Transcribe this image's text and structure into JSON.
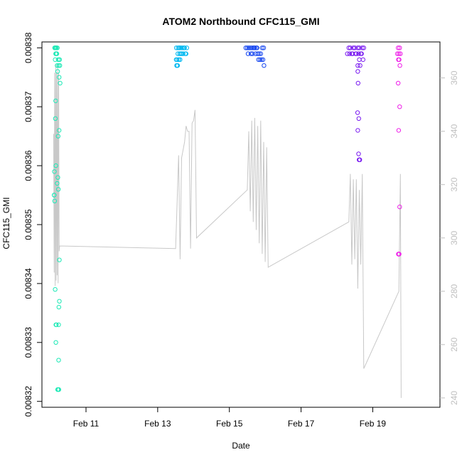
{
  "chart_data": {
    "type": "scatter",
    "title": "ATOM2 Northbound CFC115_GMI",
    "xlabel": "Date",
    "ylabel": "CFC115_GMI",
    "y2label": "",
    "grid": false,
    "legend": "none",
    "xlim": [
      "2022-02-09 18:30",
      "2022-02-20 21:00"
    ],
    "ylim": [
      0.008319,
      0.008381
    ],
    "y2lim": [
      236.5,
      373.5
    ],
    "x_ticks": [
      {
        "label": "Feb 11",
        "date": "2022-02-11"
      },
      {
        "label": "Feb 13",
        "date": "2022-02-13"
      },
      {
        "label": "Feb 15",
        "date": "2022-02-15"
      },
      {
        "label": "Feb 17",
        "date": "2022-02-17"
      },
      {
        "label": "Feb 19",
        "date": "2022-02-19"
      }
    ],
    "y_ticks": [
      {
        "label": "0.00832",
        "value": 0.00832
      },
      {
        "label": "0.00833",
        "value": 0.00833
      },
      {
        "label": "0.00834",
        "value": 0.00834
      },
      {
        "label": "0.00835",
        "value": 0.00835
      },
      {
        "label": "0.00836",
        "value": 0.00836
      },
      {
        "label": "0.00837",
        "value": 0.00837
      },
      {
        "label": "0.00838",
        "value": 0.00838
      }
    ],
    "y2_ticks": [
      {
        "label": "240",
        "value": 240
      },
      {
        "label": "260",
        "value": 260
      },
      {
        "label": "280",
        "value": 280
      },
      {
        "label": "300",
        "value": 300
      },
      {
        "label": "320",
        "value": 320
      },
      {
        "label": "340",
        "value": 340
      },
      {
        "label": "360",
        "value": 360
      }
    ],
    "series": [
      {
        "color": "#1de9b6",
        "points": [
          [
            "2022-02-10 03:10",
            0.00838
          ],
          [
            "2022-02-10 03:30",
            0.00838
          ],
          [
            "2022-02-10 03:50",
            0.008379
          ],
          [
            "2022-02-10 04:10",
            0.00838
          ],
          [
            "2022-02-10 04:30",
            0.008379
          ],
          [
            "2022-02-10 03:20",
            0.008378
          ],
          [
            "2022-02-10 04:40",
            0.008377
          ],
          [
            "2022-02-10 05:00",
            0.008376
          ],
          [
            "2022-02-10 05:20",
            0.008378
          ],
          [
            "2022-02-10 05:40",
            0.008377
          ],
          [
            "2022-02-10 03:00",
            0.00838
          ],
          [
            "2022-02-10 03:40",
            0.008379
          ],
          [
            "2022-02-10 04:00",
            0.00838
          ],
          [
            "2022-02-10 04:20",
            0.008379
          ],
          [
            "2022-02-10 04:50",
            0.00838
          ],
          [
            "2022-02-10 06:10",
            0.008378
          ],
          [
            "2022-02-10 06:20",
            0.008378
          ],
          [
            "2022-02-10 06:30",
            0.008377
          ],
          [
            "2022-02-10 06:00",
            0.008375
          ],
          [
            "2022-02-10 06:40",
            0.008374
          ],
          [
            "2022-02-10 03:40",
            0.008371
          ],
          [
            "2022-02-10 03:30",
            0.008368
          ],
          [
            "2022-02-10 06:00",
            0.008366
          ],
          [
            "2022-02-10 05:20",
            0.008365
          ],
          [
            "2022-02-10 03:50",
            0.00836
          ],
          [
            "2022-02-10 02:50",
            0.008359
          ],
          [
            "2022-02-10 05:10",
            0.008358
          ],
          [
            "2022-02-10 04:40",
            0.008357
          ],
          [
            "2022-02-10 05:30",
            0.008356
          ],
          [
            "2022-02-10 02:40",
            0.008355
          ],
          [
            "2022-02-10 02:40",
            0.008355
          ],
          [
            "2022-02-10 03:00",
            0.008354
          ],
          [
            "2022-02-10 06:10",
            0.008344
          ],
          [
            "2022-02-10 03:20",
            0.008339
          ],
          [
            "2022-02-10 06:10",
            0.008337
          ],
          [
            "2022-02-10 05:50",
            0.008336
          ],
          [
            "2022-02-10 05:40",
            0.008333
          ],
          [
            "2022-02-10 03:50",
            0.008333
          ],
          [
            "2022-02-10 04:10",
            0.008333
          ],
          [
            "2022-02-10 03:50",
            0.00833
          ],
          [
            "2022-02-10 05:40",
            0.008327
          ],
          [
            "2022-02-10 05:50",
            0.008322
          ],
          [
            "2022-02-10 05:00",
            0.008322
          ],
          [
            "2022-02-10 05:20",
            0.008322
          ]
        ]
      },
      {
        "color": "#00b8f0",
        "points": [
          [
            "2022-02-13 12:30",
            0.00838
          ],
          [
            "2022-02-13 13:30",
            0.008379
          ],
          [
            "2022-02-13 14:30",
            0.00838
          ],
          [
            "2022-02-13 15:30",
            0.008379
          ],
          [
            "2022-02-13 16:30",
            0.00838
          ],
          [
            "2022-02-13 17:30",
            0.00838
          ],
          [
            "2022-02-13 18:30",
            0.008379
          ],
          [
            "2022-02-13 19:30",
            0.00838
          ],
          [
            "2022-02-13 13:00",
            0.008378
          ],
          [
            "2022-02-13 14:00",
            0.008378
          ],
          [
            "2022-02-13 15:00",
            0.008378
          ],
          [
            "2022-02-13 16:00",
            0.008379
          ],
          [
            "2022-02-13 12:20",
            0.008378
          ],
          [
            "2022-02-13 12:40",
            0.008377
          ],
          [
            "2022-02-13 14:10",
            0.008378
          ],
          [
            "2022-02-13 17:00",
            0.008379
          ],
          [
            "2022-02-13 18:00",
            0.00838
          ],
          [
            "2022-02-13 19:00",
            0.008379
          ],
          [
            "2022-02-13 12:50",
            0.008377
          ],
          [
            "2022-02-13 13:20",
            0.008377
          ],
          [
            "2022-02-13 14:40",
            0.008379
          ],
          [
            "2022-02-13 13:40",
            0.00838
          ],
          [
            "2022-02-13 14:50",
            0.00838
          ],
          [
            "2022-02-13 15:40",
            0.00838
          ]
        ]
      },
      {
        "color": "#1848f0",
        "points": [
          [
            "2022-02-15 11:00",
            0.00838
          ],
          [
            "2022-02-15 12:00",
            0.00838
          ],
          [
            "2022-02-15 13:00",
            0.00838
          ],
          [
            "2022-02-15 14:00",
            0.00838
          ],
          [
            "2022-02-15 15:00",
            0.00838
          ],
          [
            "2022-02-15 16:00",
            0.00838
          ],
          [
            "2022-02-15 17:00",
            0.00838
          ],
          [
            "2022-02-15 18:00",
            0.00838
          ],
          [
            "2022-02-15 19:00",
            0.008379
          ],
          [
            "2022-02-15 20:00",
            0.008379
          ],
          [
            "2022-02-15 21:00",
            0.008379
          ],
          [
            "2022-02-15 22:00",
            0.00838
          ],
          [
            "2022-02-15 23:00",
            0.00838
          ],
          [
            "2022-02-15 15:30",
            0.008379
          ],
          [
            "2022-02-15 17:30",
            0.008379
          ],
          [
            "2022-02-15 19:30",
            0.008378
          ],
          [
            "2022-02-15 20:30",
            0.008378
          ],
          [
            "2022-02-15 21:30",
            0.008378
          ],
          [
            "2022-02-15 22:30",
            0.008378
          ],
          [
            "2022-02-15 23:10",
            0.008377
          ],
          [
            "2022-02-15 12:30",
            0.008379
          ],
          [
            "2022-02-15 14:30",
            0.008379
          ],
          [
            "2022-02-15 16:30",
            0.00838
          ],
          [
            "2022-02-15 18:30",
            0.00838
          ]
        ]
      },
      {
        "color": "#7a1bf0",
        "points": [
          [
            "2022-02-18 07:00",
            0.008379
          ],
          [
            "2022-02-18 08:00",
            0.00838
          ],
          [
            "2022-02-18 09:00",
            0.00838
          ],
          [
            "2022-02-18 10:00",
            0.008379
          ],
          [
            "2022-02-18 11:00",
            0.00838
          ],
          [
            "2022-02-18 12:00",
            0.00838
          ],
          [
            "2022-02-18 13:00",
            0.008379
          ],
          [
            "2022-02-18 14:00",
            0.00838
          ],
          [
            "2022-02-18 15:00",
            0.00838
          ],
          [
            "2022-02-18 16:00",
            0.008379
          ],
          [
            "2022-02-18 17:00",
            0.00838
          ],
          [
            "2022-02-18 18:00",
            0.00838
          ],
          [
            "2022-02-18 08:30",
            0.008379
          ],
          [
            "2022-02-18 10:30",
            0.008379
          ],
          [
            "2022-02-18 12:30",
            0.008379
          ],
          [
            "2022-02-18 14:30",
            0.008379
          ],
          [
            "2022-02-18 16:30",
            0.008379
          ],
          [
            "2022-02-18 17:30",
            0.008378
          ],
          [
            "2022-02-18 15:00",
            0.008378
          ],
          [
            "2022-02-18 14:00",
            0.008377
          ],
          [
            "2022-02-18 15:30",
            0.008377
          ],
          [
            "2022-02-18 14:00",
            0.008376
          ],
          [
            "2022-02-18 14:10",
            0.008374
          ],
          [
            "2022-02-18 13:50",
            0.008369
          ],
          [
            "2022-02-18 14:40",
            0.008368
          ],
          [
            "2022-02-18 14:00",
            0.008366
          ],
          [
            "2022-02-18 14:30",
            0.008362
          ],
          [
            "2022-02-18 15:10",
            0.008361
          ],
          [
            "2022-02-18 15:20",
            0.008361
          ],
          [
            "2022-02-18 14:50",
            0.008361
          ]
        ]
      },
      {
        "color": "#ee1ee8",
        "points": [
          [
            "2022-02-19 17:00",
            0.00838
          ],
          [
            "2022-02-19 17:30",
            0.008379
          ],
          [
            "2022-02-19 18:00",
            0.00838
          ],
          [
            "2022-02-19 18:30",
            0.008379
          ],
          [
            "2022-02-19 16:30",
            0.008379
          ],
          [
            "2022-02-19 17:10",
            0.008378
          ],
          [
            "2022-02-19 17:40",
            0.008378
          ],
          [
            "2022-02-19 18:10",
            0.008377
          ],
          [
            "2022-02-19 17:00",
            0.008374
          ],
          [
            "2022-02-19 18:00",
            0.00837
          ],
          [
            "2022-02-19 17:20",
            0.008366
          ],
          [
            "2022-02-19 18:00",
            0.008353
          ],
          [
            "2022-02-19 17:30",
            0.008345
          ],
          [
            "2022-02-19 17:40",
            0.008345
          ],
          [
            "2022-02-19 17:20",
            0.008345
          ],
          [
            "2022-02-19 17:10",
            0.008345
          ]
        ]
      }
    ],
    "line_series": {
      "color": "#c8c8c8",
      "axis": "right",
      "points": [
        [
          "2022-02-10 02:20",
          339
        ],
        [
          "2022-02-10 02:40",
          287
        ],
        [
          "2022-02-10 03:00",
          362
        ],
        [
          "2022-02-10 03:20",
          282
        ],
        [
          "2022-02-10 03:40",
          365
        ],
        [
          "2022-02-10 04:00",
          284
        ],
        [
          "2022-02-10 04:20",
          362
        ],
        [
          "2022-02-10 04:40",
          286
        ],
        [
          "2022-02-10 05:00",
          365
        ],
        [
          "2022-02-10 05:20",
          283
        ],
        [
          "2022-02-10 05:40",
          362
        ],
        [
          "2022-02-10 06:00",
          295
        ],
        [
          "2022-02-10 06:20",
          297
        ],
        [
          "2022-02-13 12:00",
          296
        ],
        [
          "2022-02-13 14:00",
          331
        ],
        [
          "2022-02-13 15:00",
          292
        ],
        [
          "2022-02-13 16:00",
          330
        ],
        [
          "2022-02-13 18:00",
          336
        ],
        [
          "2022-02-13 19:00",
          342
        ],
        [
          "2022-02-13 20:00",
          340
        ],
        [
          "2022-02-13 21:00",
          340
        ],
        [
          "2022-02-13 22:00",
          296
        ],
        [
          "2022-02-13 23:00",
          343
        ],
        [
          "2022-02-14 00:00",
          344
        ],
        [
          "2022-02-14 01:00",
          348
        ],
        [
          "2022-02-14 02:00",
          300
        ],
        [
          "2022-02-15 12:00",
          318
        ],
        [
          "2022-02-15 13:00",
          340
        ],
        [
          "2022-02-15 14:00",
          310
        ],
        [
          "2022-02-15 15:00",
          344
        ],
        [
          "2022-02-15 16:00",
          306
        ],
        [
          "2022-02-15 17:00",
          345
        ],
        [
          "2022-02-15 18:00",
          303
        ],
        [
          "2022-02-15 19:00",
          342
        ],
        [
          "2022-02-15 20:00",
          298
        ],
        [
          "2022-02-15 21:00",
          344
        ],
        [
          "2022-02-15 22:00",
          294
        ],
        [
          "2022-02-15 23:00",
          336
        ],
        [
          "2022-02-16 00:00",
          291
        ],
        [
          "2022-02-16 01:00",
          334
        ],
        [
          "2022-02-16 02:00",
          289
        ],
        [
          "2022-02-18 08:00",
          306
        ],
        [
          "2022-02-18 09:00",
          324
        ],
        [
          "2022-02-18 10:00",
          290
        ],
        [
          "2022-02-18 11:00",
          322
        ],
        [
          "2022-02-18 12:00",
          292
        ],
        [
          "2022-02-18 13:00",
          322
        ],
        [
          "2022-02-18 14:00",
          281
        ],
        [
          "2022-02-18 15:00",
          318
        ],
        [
          "2022-02-18 16:00",
          290
        ],
        [
          "2022-02-18 17:00",
          324
        ],
        [
          "2022-02-18 18:00",
          251
        ],
        [
          "2022-02-19 17:30",
          280
        ],
        [
          "2022-02-19 18:30",
          324
        ],
        [
          "2022-02-19 19:00",
          240
        ]
      ]
    }
  }
}
